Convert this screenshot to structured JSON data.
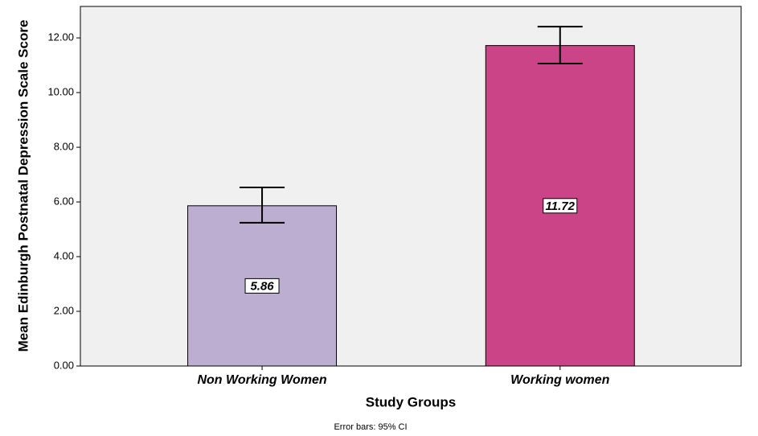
{
  "chart_data": {
    "type": "bar",
    "x_label": "Study Groups",
    "y_label": "Mean Edinburgh Postnatal Depression Scale Score",
    "note": "Error bars: 95% CI",
    "categories": [
      "Non Working Women",
      "Working women"
    ],
    "values": [
      5.86,
      11.72
    ],
    "colors": [
      "#bcaed0",
      "#cc4488"
    ],
    "ci_low": [
      5.24,
      11.06
    ],
    "ci_high": [
      6.53,
      12.41
    ],
    "ylim": [
      0,
      13.15
    ],
    "yticks": [
      {
        "value": 0,
        "label": "0.00"
      },
      {
        "value": 2,
        "label": "2.00"
      },
      {
        "value": 4,
        "label": "4.00"
      },
      {
        "value": 6,
        "label": "6.00"
      },
      {
        "value": 8,
        "label": "8.00"
      },
      {
        "value": 10,
        "label": "10.00"
      },
      {
        "value": 12,
        "label": "12.00"
      }
    ]
  }
}
